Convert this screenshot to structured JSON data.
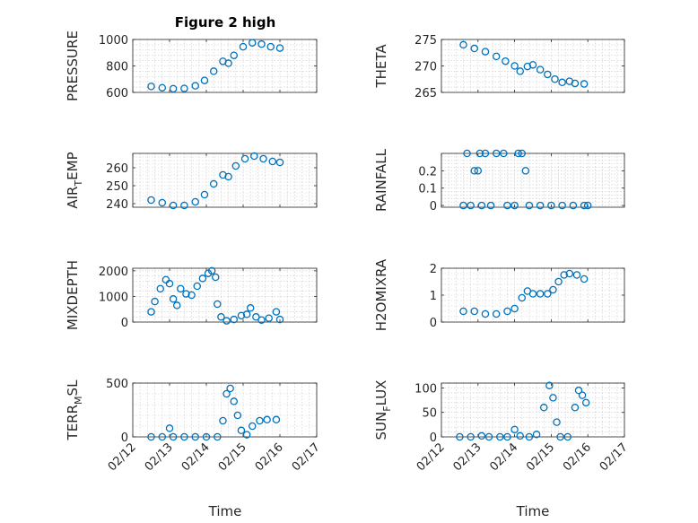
{
  "figure": {
    "title": "Figure 2 high",
    "xlabel": "Time",
    "marker_color": "#0072bd"
  },
  "chart_data": [
    {
      "type": "scatter",
      "ylabel": "PRESSURE",
      "title": "Figure 2 high",
      "ylim": [
        600,
        1000
      ],
      "yticks": [
        600,
        800,
        1000
      ],
      "xlim": [
        1,
        6
      ],
      "xticks": [
        1,
        2,
        3,
        4,
        5,
        6
      ],
      "xtick_labels": [
        "02/12",
        "02/13",
        "02/14",
        "02/15",
        "02/16",
        "02/17"
      ],
      "show_xtick_labels": false,
      "grid": true,
      "series": [
        {
          "points": [
            [
              1.5,
              645
            ],
            [
              1.8,
              635
            ],
            [
              2.1,
              628
            ],
            [
              2.4,
              630
            ],
            [
              2.7,
              650
            ],
            [
              2.95,
              690
            ],
            [
              3.2,
              760
            ],
            [
              3.45,
              835
            ],
            [
              3.6,
              820
            ],
            [
              3.75,
              880
            ],
            [
              4.0,
              945
            ],
            [
              4.25,
              975
            ],
            [
              4.5,
              965
            ],
            [
              4.75,
              945
            ],
            [
              5.0,
              935
            ]
          ]
        }
      ]
    },
    {
      "type": "scatter",
      "ylabel": "THETA",
      "ylim": [
        265,
        275
      ],
      "yticks": [
        265,
        270,
        275
      ],
      "xlim": [
        1,
        6
      ],
      "xticks": [
        1,
        2,
        3,
        4,
        5,
        6
      ],
      "xtick_labels": [
        "02/12",
        "02/13",
        "02/14",
        "02/15",
        "02/16",
        "02/17"
      ],
      "show_xtick_labels": false,
      "grid": true,
      "series": [
        {
          "points": [
            [
              1.6,
              274
            ],
            [
              1.9,
              273.3
            ],
            [
              2.2,
              272.7
            ],
            [
              2.5,
              271.8
            ],
            [
              2.75,
              270.9
            ],
            [
              3.0,
              270
            ],
            [
              3.15,
              269
            ],
            [
              3.35,
              269.9
            ],
            [
              3.5,
              270.2
            ],
            [
              3.7,
              269.3
            ],
            [
              3.9,
              268.4
            ],
            [
              4.1,
              267.5
            ],
            [
              4.3,
              266.9
            ],
            [
              4.5,
              267.1
            ],
            [
              4.65,
              266.7
            ],
            [
              4.9,
              266.6
            ]
          ]
        }
      ]
    },
    {
      "type": "scatter",
      "ylabel_main": "AIR",
      "ylabel_sub": "T",
      "ylabel_rest": "EMP",
      "ylim": [
        238,
        268
      ],
      "yticks": [
        240,
        250,
        260
      ],
      "xlim": [
        1,
        6
      ],
      "xticks": [
        1,
        2,
        3,
        4,
        5,
        6
      ],
      "xtick_labels": [
        "02/12",
        "02/13",
        "02/14",
        "02/15",
        "02/16",
        "02/17"
      ],
      "show_xtick_labels": false,
      "grid": true,
      "series": [
        {
          "points": [
            [
              1.5,
              242
            ],
            [
              1.8,
              240.5
            ],
            [
              2.1,
              239
            ],
            [
              2.4,
              239
            ],
            [
              2.7,
              241
            ],
            [
              2.95,
              245
            ],
            [
              3.2,
              251
            ],
            [
              3.45,
              256
            ],
            [
              3.6,
              255
            ],
            [
              3.8,
              261
            ],
            [
              4.05,
              265
            ],
            [
              4.3,
              266.5
            ],
            [
              4.55,
              265
            ],
            [
              4.8,
              263.5
            ],
            [
              5.0,
              263
            ]
          ]
        }
      ]
    },
    {
      "type": "scatter",
      "ylabel": "RAINFALL",
      "ylim": [
        -0.01,
        0.3
      ],
      "yticks": [
        0,
        0.1,
        0.2
      ],
      "xlim": [
        1,
        6
      ],
      "xticks": [
        1,
        2,
        3,
        4,
        5,
        6
      ],
      "xtick_labels": [
        "02/12",
        "02/13",
        "02/14",
        "02/15",
        "02/16",
        "02/17"
      ],
      "show_xtick_labels": false,
      "grid": true,
      "series": [
        {
          "points": [
            [
              1.6,
              0
            ],
            [
              1.7,
              0.3
            ],
            [
              1.8,
              0
            ],
            [
              1.9,
              0.2
            ],
            [
              2.0,
              0.2
            ],
            [
              2.05,
              0.3
            ],
            [
              2.1,
              0
            ],
            [
              2.2,
              0.3
            ],
            [
              2.35,
              0
            ],
            [
              2.5,
              0.3
            ],
            [
              2.7,
              0.3
            ],
            [
              2.8,
              0
            ],
            [
              3.0,
              0
            ],
            [
              3.1,
              0.3
            ],
            [
              3.2,
              0.3
            ],
            [
              3.3,
              0.2
            ],
            [
              3.4,
              0
            ],
            [
              3.7,
              0
            ],
            [
              4.0,
              0
            ],
            [
              4.3,
              0
            ],
            [
              4.6,
              0
            ],
            [
              4.9,
              0
            ],
            [
              5.0,
              0
            ]
          ]
        }
      ]
    },
    {
      "type": "scatter",
      "ylabel": "MIXDEPTH",
      "ylim": [
        0,
        2100
      ],
      "yticks": [
        0,
        1000,
        2000
      ],
      "xlim": [
        1,
        6
      ],
      "xticks": [
        1,
        2,
        3,
        4,
        5,
        6
      ],
      "xtick_labels": [
        "02/12",
        "02/13",
        "02/14",
        "02/15",
        "02/16",
        "02/17"
      ],
      "show_xtick_labels": false,
      "grid": true,
      "series": [
        {
          "points": [
            [
              1.5,
              400
            ],
            [
              1.6,
              800
            ],
            [
              1.75,
              1300
            ],
            [
              1.9,
              1650
            ],
            [
              2.0,
              1500
            ],
            [
              2.1,
              900
            ],
            [
              2.2,
              650
            ],
            [
              2.3,
              1300
            ],
            [
              2.45,
              1100
            ],
            [
              2.6,
              1050
            ],
            [
              2.75,
              1400
            ],
            [
              2.9,
              1700
            ],
            [
              3.05,
              1900
            ],
            [
              3.15,
              2000
            ],
            [
              3.25,
              1750
            ],
            [
              3.3,
              700
            ],
            [
              3.4,
              200
            ],
            [
              3.55,
              50
            ],
            [
              3.75,
              100
            ],
            [
              3.95,
              250
            ],
            [
              4.1,
              300
            ],
            [
              4.2,
              550
            ],
            [
              4.35,
              200
            ],
            [
              4.5,
              80
            ],
            [
              4.7,
              150
            ],
            [
              4.9,
              400
            ],
            [
              5.0,
              100
            ]
          ]
        }
      ]
    },
    {
      "type": "scatter",
      "ylabel": "H2OMIXRA",
      "ylim": [
        0,
        2
      ],
      "yticks": [
        0,
        1,
        2
      ],
      "xlim": [
        1,
        6
      ],
      "xticks": [
        1,
        2,
        3,
        4,
        5,
        6
      ],
      "xtick_labels": [
        "02/12",
        "02/13",
        "02/14",
        "02/15",
        "02/16",
        "02/17"
      ],
      "show_xtick_labels": false,
      "grid": true,
      "series": [
        {
          "points": [
            [
              1.6,
              0.4
            ],
            [
              1.9,
              0.4
            ],
            [
              2.2,
              0.3
            ],
            [
              2.5,
              0.3
            ],
            [
              2.8,
              0.4
            ],
            [
              3.0,
              0.5
            ],
            [
              3.2,
              0.9
            ],
            [
              3.35,
              1.15
            ],
            [
              3.5,
              1.05
            ],
            [
              3.7,
              1.05
            ],
            [
              3.9,
              1.05
            ],
            [
              4.05,
              1.2
            ],
            [
              4.2,
              1.5
            ],
            [
              4.35,
              1.75
            ],
            [
              4.5,
              1.8
            ],
            [
              4.7,
              1.75
            ],
            [
              4.9,
              1.6
            ]
          ]
        }
      ]
    },
    {
      "type": "scatter",
      "ylabel_main": "TERR",
      "ylabel_sub": "M",
      "ylabel_rest": "SL",
      "ylim": [
        0,
        500
      ],
      "yticks": [
        0,
        500
      ],
      "xlim": [
        1,
        6
      ],
      "xticks": [
        1,
        2,
        3,
        4,
        5,
        6
      ],
      "xtick_labels": [
        "02/12",
        "02/13",
        "02/14",
        "02/15",
        "02/16",
        "02/17"
      ],
      "show_xtick_labels": true,
      "grid": true,
      "series": [
        {
          "points": [
            [
              1.5,
              0
            ],
            [
              1.8,
              0
            ],
            [
              2.0,
              80
            ],
            [
              2.1,
              0
            ],
            [
              2.4,
              0
            ],
            [
              2.7,
              0
            ],
            [
              3.0,
              0
            ],
            [
              3.3,
              0
            ],
            [
              3.45,
              150
            ],
            [
              3.55,
              400
            ],
            [
              3.65,
              450
            ],
            [
              3.75,
              330
            ],
            [
              3.85,
              200
            ],
            [
              3.95,
              60
            ],
            [
              4.1,
              20
            ],
            [
              4.25,
              100
            ],
            [
              4.45,
              150
            ],
            [
              4.65,
              160
            ],
            [
              4.9,
              160
            ]
          ]
        }
      ]
    },
    {
      "type": "scatter",
      "ylabel_main": "SUN",
      "ylabel_sub": "F",
      "ylabel_rest": "LUX",
      "ylim": [
        0,
        110
      ],
      "yticks": [
        0,
        50,
        100
      ],
      "xlim": [
        1,
        6
      ],
      "xticks": [
        1,
        2,
        3,
        4,
        5,
        6
      ],
      "xtick_labels": [
        "02/12",
        "02/13",
        "02/14",
        "02/15",
        "02/16",
        "02/17"
      ],
      "show_xtick_labels": true,
      "grid": true,
      "series": [
        {
          "points": [
            [
              1.5,
              0
            ],
            [
              1.8,
              0
            ],
            [
              2.1,
              2
            ],
            [
              2.3,
              0
            ],
            [
              2.6,
              0
            ],
            [
              2.8,
              0
            ],
            [
              3.0,
              15
            ],
            [
              3.15,
              2
            ],
            [
              3.4,
              0
            ],
            [
              3.6,
              5
            ],
            [
              3.8,
              60
            ],
            [
              3.95,
              105
            ],
            [
              4.05,
              80
            ],
            [
              4.15,
              30
            ],
            [
              4.25,
              0
            ],
            [
              4.45,
              0
            ],
            [
              4.65,
              60
            ],
            [
              4.75,
              95
            ],
            [
              4.85,
              85
            ],
            [
              4.95,
              70
            ]
          ]
        }
      ]
    }
  ]
}
